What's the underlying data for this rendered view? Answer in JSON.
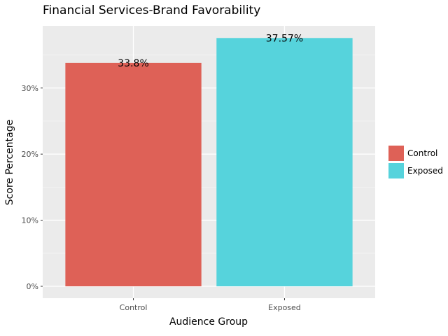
{
  "chart_data": {
    "type": "bar",
    "title": "Financial Services-Brand Favorability",
    "xlabel": "Audience Group",
    "ylabel": "Score Percentage",
    "categories": [
      "Control",
      "Exposed"
    ],
    "values": [
      33.8,
      37.57
    ],
    "data_labels": [
      "33.8%",
      "37.57%"
    ],
    "colors": [
      "#de6157",
      "#56d3dc"
    ],
    "ylim": [
      -1.8,
      39.4
    ],
    "y_ticks": [
      0,
      10,
      20,
      30
    ],
    "y_tick_labels": [
      "0%",
      "10%",
      "20%",
      "30%"
    ],
    "grid": true,
    "legend": {
      "placement": "right",
      "entries": [
        "Control",
        "Exposed"
      ]
    }
  }
}
